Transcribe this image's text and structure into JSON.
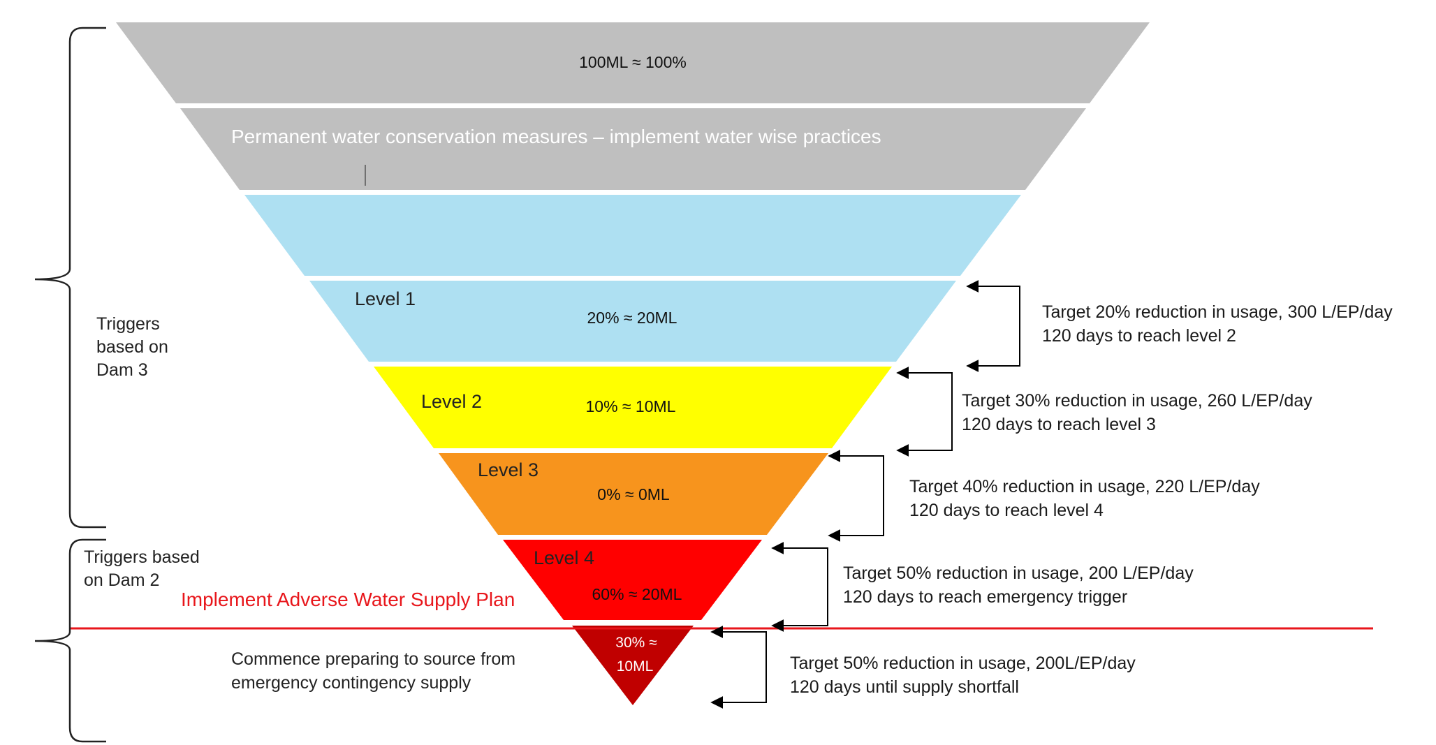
{
  "diagram": {
    "bands": [
      {
        "id": "top",
        "value_label": "100ML ≈ 100%",
        "color": "#bfbfbf"
      },
      {
        "id": "permanent",
        "heading": "Permanent water conservation measures – implement water wise practices",
        "color": "#bfbfbf"
      },
      {
        "id": "blue-upper",
        "color": "#aee0f2"
      },
      {
        "id": "level1",
        "level_label": "Level 1",
        "value_label": "20% ≈ 20ML",
        "color": "#aee0f2"
      },
      {
        "id": "level2",
        "level_label": "Level 2",
        "value_label": "10% ≈ 10ML",
        "color": "#ffff00"
      },
      {
        "id": "level3",
        "level_label": "Level 3",
        "value_label": "0% ≈ 0ML",
        "color": "#f7941d"
      },
      {
        "id": "level4",
        "level_label": "Level 4",
        "value_label": "60% ≈ 20ML",
        "color": "#ff0000"
      },
      {
        "id": "emergency",
        "value_line1": "30% ≈",
        "value_line2": "10ML",
        "color": "#c00000"
      }
    ],
    "side_labels": {
      "dam3": [
        "Triggers",
        "based on",
        "Dam 3"
      ],
      "dam2": [
        "Triggers based",
        "on Dam 2"
      ],
      "adverse_plan": "Implement Adverse Water Supply Plan",
      "adverse_color": "#e8161b",
      "contingency": [
        "Commence preparing to source from",
        "emergency contingency supply"
      ]
    },
    "targets": [
      {
        "line1": "Target 20% reduction in usage, 300 L/EP/day",
        "line2": "120 days to reach level 2"
      },
      {
        "line1": "Target 30% reduction in usage, 260 L/EP/day",
        "line2": "120 days to reach level 3"
      },
      {
        "line1": "Target 40% reduction in usage, 220 L/EP/day",
        "line2": "120 days to reach level 4"
      },
      {
        "line1": "Target 50% reduction in usage, 200 L/EP/day",
        "line2": "120 days to reach emergency trigger"
      },
      {
        "line1": "Target 50% reduction in usage, 200L/EP/day",
        "line2": "120 days until supply shortfall"
      }
    ]
  }
}
